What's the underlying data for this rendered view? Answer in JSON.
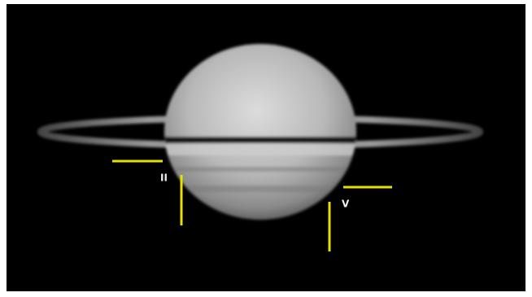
{
  "annotations": [
    "II",
    "V"
  ]
}
